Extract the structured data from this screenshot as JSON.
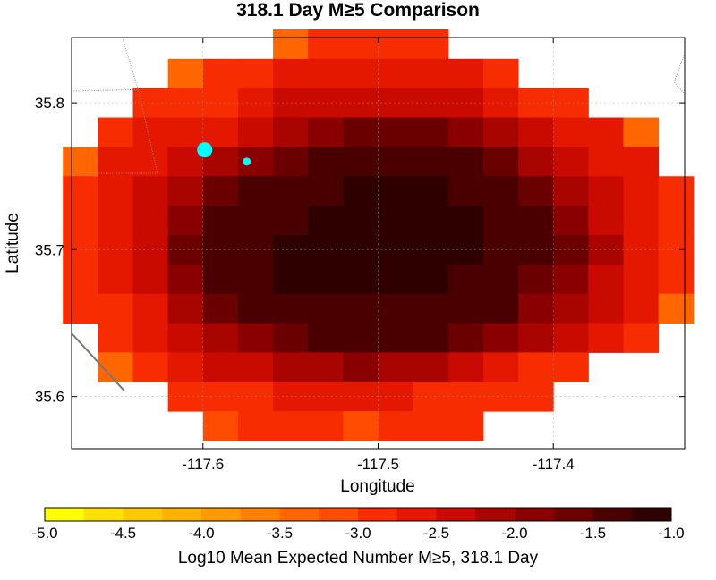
{
  "chart_data": {
    "type": "heatmap",
    "title": "318.1 Day M≥5 Comparison",
    "xlabel": "Longitude",
    "ylabel": "Latitude",
    "xlim": [
      -117.675,
      -117.325
    ],
    "ylim": [
      35.5645,
      35.8445
    ],
    "x_ticks": [
      -117.6,
      -117.5,
      -117.4
    ],
    "x_tick_labels": [
      "-117.6",
      "-117.5",
      "-117.4"
    ],
    "y_ticks": [
      35.6,
      35.7,
      35.8
    ],
    "y_tick_labels": [
      "35.6",
      "35.7",
      "35.8"
    ],
    "grid": true,
    "cell_lon_step": 0.02,
    "cell_lat_step": 0.02,
    "cell_lon_start": -117.67,
    "cell_lat_start": 35.58,
    "cell_value_order": "rows from north (top) to south; columns from west (left) to east; null = no value",
    "cell_values": [
      [
        null,
        null,
        null,
        null,
        null,
        null,
        -3.5,
        -3.0,
        -3.0,
        -3.0,
        -3.0,
        null,
        null,
        null,
        null,
        null,
        null,
        null
      ],
      [
        null,
        null,
        null,
        -3.5,
        -3.0,
        -3.0,
        -2.75,
        -2.75,
        -2.75,
        -2.75,
        -2.75,
        -2.75,
        -3.0,
        null,
        null,
        null,
        null,
        null
      ],
      [
        null,
        null,
        -3.0,
        -3.0,
        -3.0,
        -2.75,
        -2.5,
        -2.5,
        -2.5,
        -2.5,
        -2.5,
        -2.5,
        -2.75,
        -3.0,
        -3.0,
        null,
        null,
        null
      ],
      [
        null,
        -3.0,
        -2.75,
        -2.75,
        -2.75,
        -2.5,
        -2.25,
        -2.0,
        -1.75,
        -1.75,
        -1.75,
        -2.0,
        -2.25,
        -2.5,
        -2.75,
        -2.75,
        -3.5,
        null
      ],
      [
        -3.5,
        -2.75,
        -2.75,
        -2.5,
        -2.25,
        -2.0,
        -1.75,
        -1.5,
        -1.5,
        -1.5,
        -1.5,
        -1.5,
        -1.75,
        -2.25,
        -2.5,
        -2.75,
        -2.75,
        null
      ],
      [
        -3.0,
        -2.75,
        -2.5,
        -2.25,
        -1.75,
        -1.5,
        -1.5,
        -1.5,
        -1.25,
        -1.25,
        -1.25,
        -1.5,
        -1.5,
        -1.75,
        -2.25,
        -2.5,
        -2.75,
        -3.0
      ],
      [
        -3.0,
        -2.75,
        -2.5,
        -2.0,
        -1.5,
        -1.5,
        -1.5,
        -1.25,
        -1.25,
        -1.25,
        -1.25,
        -1.25,
        -1.5,
        -1.5,
        -2.0,
        -2.5,
        -2.75,
        -3.0
      ],
      [
        -3.0,
        -2.75,
        -2.5,
        -1.75,
        -1.5,
        -1.5,
        -1.25,
        -1.25,
        -1.25,
        -1.25,
        -1.25,
        -1.25,
        -1.5,
        -1.5,
        -1.75,
        -2.25,
        -2.75,
        -3.0
      ],
      [
        -3.0,
        -2.75,
        -2.5,
        -2.0,
        -1.5,
        -1.5,
        -1.25,
        -1.25,
        -1.25,
        -1.25,
        -1.25,
        -1.5,
        -1.5,
        -1.75,
        -2.0,
        -2.5,
        -2.75,
        -3.0
      ],
      [
        -3.0,
        -3.0,
        -2.75,
        -2.25,
        -1.75,
        -1.5,
        -1.5,
        -1.5,
        -1.5,
        -1.5,
        -1.5,
        -1.5,
        -1.5,
        -2.0,
        -2.25,
        -2.5,
        -2.75,
        -3.5
      ],
      [
        null,
        -3.0,
        -2.75,
        -2.5,
        -2.25,
        -2.0,
        -1.75,
        -1.5,
        -1.5,
        -1.5,
        -1.5,
        -1.75,
        -2.0,
        -2.25,
        -2.5,
        -2.75,
        -3.0,
        null
      ],
      [
        null,
        -3.5,
        -3.0,
        -2.75,
        -2.5,
        -2.5,
        -2.25,
        -2.25,
        -2.0,
        -2.25,
        -2.25,
        -2.5,
        -2.75,
        -3.0,
        -3.0,
        null,
        null,
        null
      ],
      [
        null,
        null,
        null,
        -3.0,
        -3.0,
        -3.0,
        -2.75,
        -2.75,
        -2.75,
        -2.75,
        -3.0,
        -3.0,
        -3.0,
        -3.0,
        null,
        null,
        null,
        null
      ],
      [
        null,
        null,
        null,
        null,
        -3.25,
        -3.0,
        -3.0,
        -3.0,
        -3.25,
        -3.0,
        -3.0,
        -3.0,
        null,
        null,
        null,
        null,
        null,
        null
      ]
    ],
    "markers": [
      {
        "lon": -117.599,
        "lat": 35.768,
        "size": "large",
        "color": "#00ffff"
      },
      {
        "lon": -117.575,
        "lat": 35.76,
        "size": "small",
        "color": "#00ffff"
      }
    ],
    "boundary_lines": [
      [
        [
          -117.675,
          35.808
        ],
        [
          -117.637,
          35.809
        ],
        [
          -117.626,
          35.752
        ],
        [
          -117.675,
          35.752
        ]
      ],
      [
        [
          -117.637,
          35.809
        ],
        [
          -117.646,
          35.844
        ]
      ],
      [
        [
          -117.675,
          35.643
        ],
        [
          -117.645,
          35.604
        ]
      ],
      [
        [
          -117.325,
          35.834
        ],
        [
          -117.331,
          35.814
        ],
        [
          -117.325,
          35.806
        ]
      ]
    ],
    "colorbar": {
      "label": "Log10 Mean Expected Number M≥5, 318.1 Day",
      "min": -5.0,
      "max": -1.0,
      "step": 0.25,
      "tick_values": [
        -5.0,
        -4.5,
        -4.0,
        -3.5,
        -3.0,
        -2.5,
        -2.0,
        -1.5,
        -1.0
      ],
      "tick_labels": [
        "-5.0",
        "-4.5",
        "-4.0",
        "-3.5",
        "-3.0",
        "-2.5",
        "-2.0",
        "-1.5",
        "-1.0"
      ],
      "colors": [
        "#ffff00",
        "#ffe000",
        "#ffc800",
        "#ffb000",
        "#ff9900",
        "#ff8000",
        "#ff6600",
        "#ff4c00",
        "#f72c00",
        "#e41800",
        "#c80a00",
        "#a80400",
        "#8a0000",
        "#6a0000",
        "#4a0000",
        "#2e0000"
      ]
    }
  }
}
